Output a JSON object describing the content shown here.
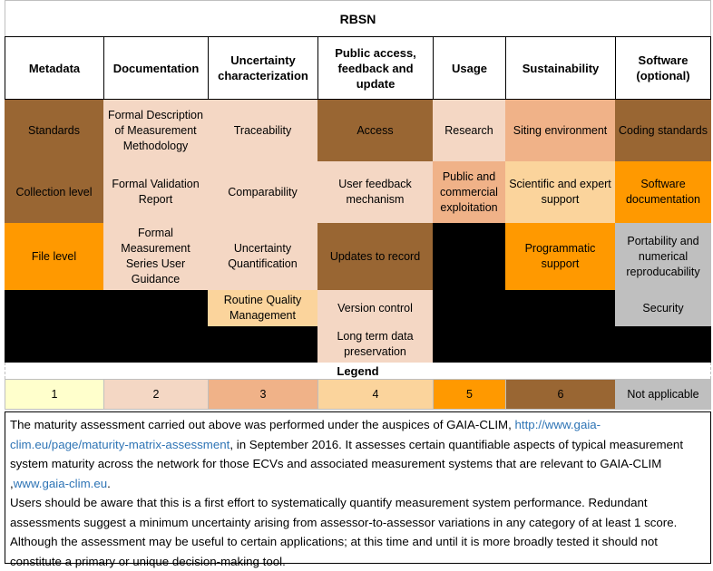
{
  "title": "RBSN",
  "colors": {
    "score_1": "#ffffcc",
    "score_2": "#f4d7c4",
    "score_3": "#f0b288",
    "score_4": "#fbd49c",
    "score_5": "#ff9900",
    "score_6": "#996633",
    "not_applicable": "#bfbfbf"
  },
  "headers": [
    "Metadata",
    "Documentation",
    "Uncertainty characterization",
    "Public access, feedback and update",
    "Usage",
    "Sustainability",
    "Software (optional)"
  ],
  "cells": {
    "metadata": [
      "Standards",
      "Collection level",
      "File level"
    ],
    "documentation": [
      "Formal Description of Measurement Methodology",
      "Formal Validation Report",
      "Formal Measurement Series User Guidance"
    ],
    "uncertainty": [
      "Traceability",
      "Comparability",
      "Uncertainty Quantification",
      "Routine Quality Management"
    ],
    "public_access": [
      "Access",
      "User feedback mechanism",
      "Updates to record",
      "Version control",
      "Long term data preservation"
    ],
    "usage": [
      "Research",
      "Public and commercial exploitation"
    ],
    "sustainability": [
      "Siting environment",
      "Scientific and expert support",
      "Programmatic support"
    ],
    "software": [
      "Coding standards",
      "Software documentation",
      "Portability and numerical reproducability",
      "Security"
    ]
  },
  "legend": {
    "title": "Legend",
    "items": [
      "1",
      "2",
      "3",
      "4",
      "5",
      "6",
      "Not applicable"
    ]
  },
  "notes": {
    "p1_text1": "The  maturity assessment carried out above was performed under the auspices of GAIA-CLIM,  ",
    "p1_link1": "http://www.gaia-clim.eu/page/maturity-matrix-assessment",
    "p1_text2": ", in September 2016. It assesses certain quantifiable aspects of typical measurement system maturity across the network for those ECVs and associated measurement systems that are relevant to GAIA-CLIM ,",
    "p1_link2": "www.gaia-clim.eu",
    "p1_text3": ".",
    "p2": "Users should be aware that this is a first effort to systematically quantify measurement system performance. Redundant assessments suggest a minimum uncertainty arising from assessor-to-assessor variations in any category of at least 1 score. Although the assessment may be useful to certain applications; at this time and until it is more broadly tested it should not constitute a primary or unique decision-making tool."
  }
}
